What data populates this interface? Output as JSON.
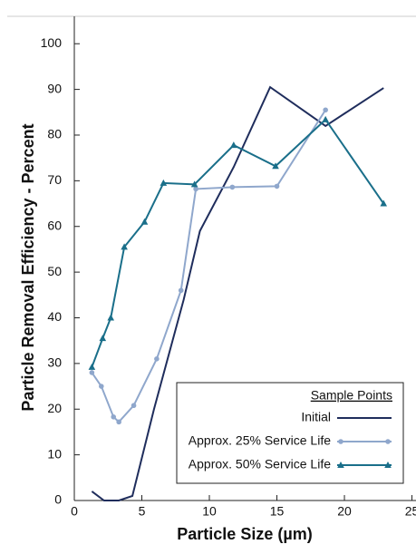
{
  "chart_data": {
    "type": "line",
    "x_label": "Particle Size (µm)",
    "y_label": "Particle Removal Efficiency - Percent",
    "legend_title": "Sample Points",
    "xlim": [
      0,
      25.3
    ],
    "xticks": [
      0,
      5,
      10,
      15,
      20,
      25
    ],
    "ylim": [
      0,
      106
    ],
    "yticks": [
      0,
      10,
      20,
      30,
      40,
      50,
      60,
      70,
      80,
      90,
      100
    ],
    "series": [
      {
        "name": "Initial",
        "color": "#1f2d5c",
        "marker": "none",
        "x": [
          1.3,
          2.2,
          3.3,
          4.3,
          5.9,
          8.1,
          9.3,
          11.8,
          14.5,
          18.6,
          22.9
        ],
        "values": [
          2,
          0,
          0,
          1,
          20,
          44,
          59,
          73,
          90.5,
          82,
          90.3
        ]
      },
      {
        "name": "Approx. 25% Service Life",
        "color": "#8fa7cc",
        "marker": "circle",
        "x": [
          1.3,
          2.0,
          2.9,
          3.3,
          4.4,
          6.1,
          7.9,
          9.0,
          11.7,
          15.0,
          18.6
        ],
        "values": [
          28,
          25,
          18.3,
          17.2,
          20.8,
          31,
          46,
          68.2,
          68.6,
          68.8,
          85.5
        ]
      },
      {
        "name": "Approx. 50% Service Life",
        "color": "#1a6f8a",
        "marker": "triangle",
        "x": [
          1.3,
          2.1,
          2.7,
          3.7,
          5.2,
          6.6,
          8.9,
          11.8,
          14.9,
          18.6,
          22.9
        ],
        "values": [
          29.2,
          35.5,
          40,
          55.5,
          61,
          69.5,
          69.2,
          77.8,
          73.2,
          83.4,
          65
        ]
      }
    ]
  }
}
